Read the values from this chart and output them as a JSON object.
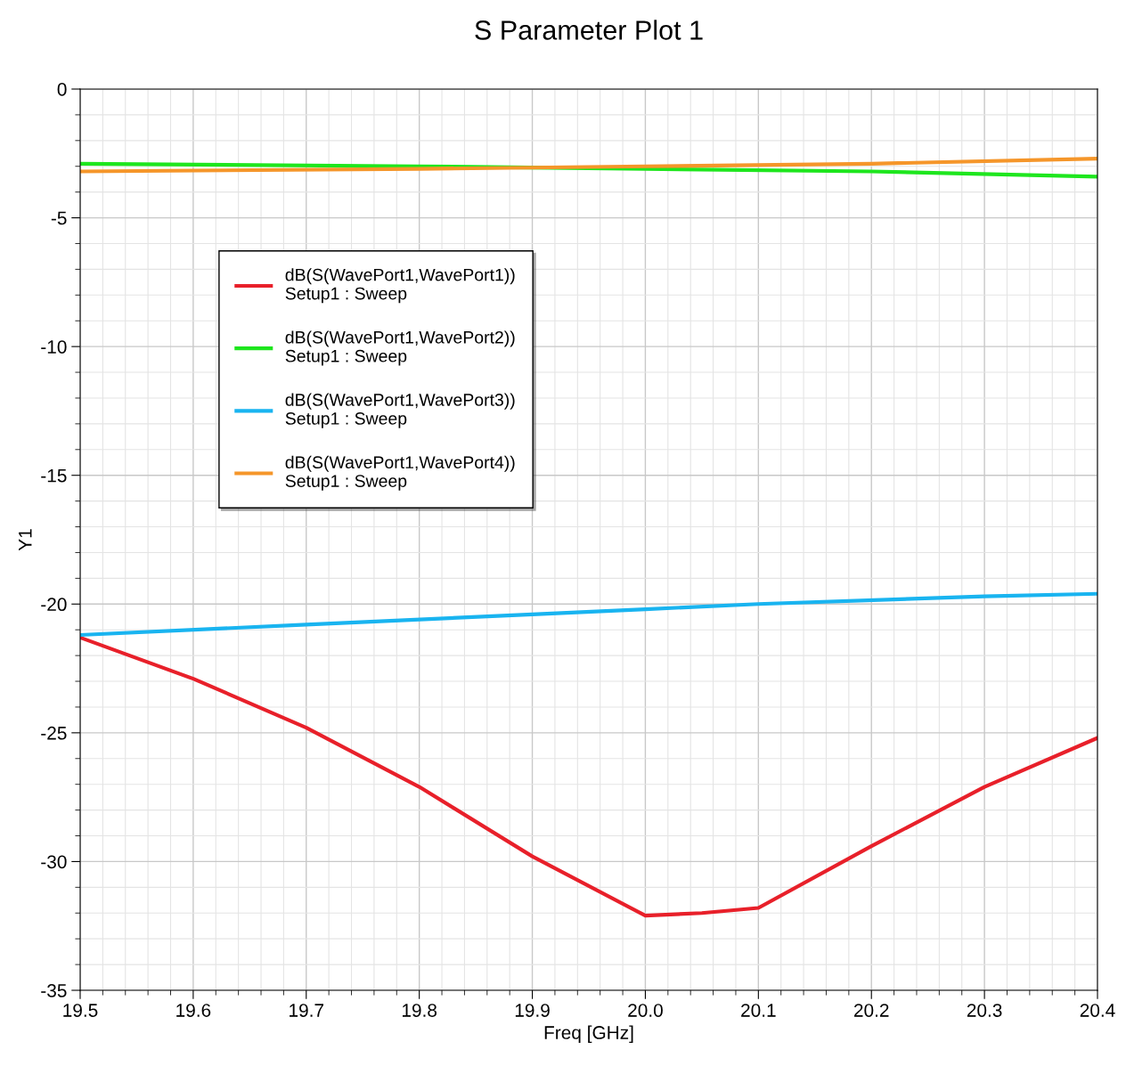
{
  "chart_data": {
    "type": "line",
    "title": "S Parameter Plot 1",
    "xlabel": "Freq [GHz]",
    "ylabel": "Y1",
    "xlim": [
      19.5,
      20.4
    ],
    "ylim": [
      -35,
      0
    ],
    "xticks": [
      19.5,
      19.6,
      19.7,
      19.8,
      19.9,
      {
        "value": 20,
        "label": "20.0"
      },
      20.1,
      20.2,
      20.3,
      20.4
    ],
    "yticks": [
      -35,
      -30,
      -25,
      -20,
      -15,
      -10,
      -5,
      0
    ],
    "grid": true,
    "legend": "top left",
    "line_style": "solid",
    "marker": "none",
    "series": [
      {
        "name": "dB(S(WavePort1,WavePort1))\nSetup1 : Sweep",
        "color": "#e8202a",
        "x": [
          19.5,
          19.6,
          19.7,
          19.8,
          19.9,
          20.0,
          20.05,
          20.1,
          20.2,
          20.3,
          20.4
        ],
        "values": [
          -21.3,
          -22.9,
          -24.8,
          -27.1,
          -29.8,
          -32.1,
          -32.0,
          -31.8,
          -29.4,
          -27.1,
          -25.2
        ]
      },
      {
        "name": "dB(S(WavePort1,WavePort2))\nSetup1 : Sweep",
        "color": "#1ee61e",
        "x": [
          19.5,
          19.8,
          20.0,
          20.2,
          20.4
        ],
        "values": [
          -2.9,
          -3.0,
          -3.1,
          -3.2,
          -3.4
        ]
      },
      {
        "name": "dB(S(WavePort1,WavePort3))\nSetup1 : Sweep",
        "color": "#19b4f0",
        "x": [
          19.5,
          19.7,
          19.9,
          20.0,
          20.1,
          20.3,
          20.4
        ],
        "values": [
          -21.2,
          -20.8,
          -20.4,
          -20.2,
          -20.0,
          -19.7,
          -19.6
        ]
      },
      {
        "name": "dB(S(WavePort1,WavePort4))\nSetup1 : Sweep",
        "color": "#f5962a",
        "x": [
          19.5,
          19.8,
          20.0,
          20.2,
          20.4
        ],
        "values": [
          -3.2,
          -3.1,
          -3.0,
          -2.9,
          -2.7
        ]
      }
    ]
  }
}
